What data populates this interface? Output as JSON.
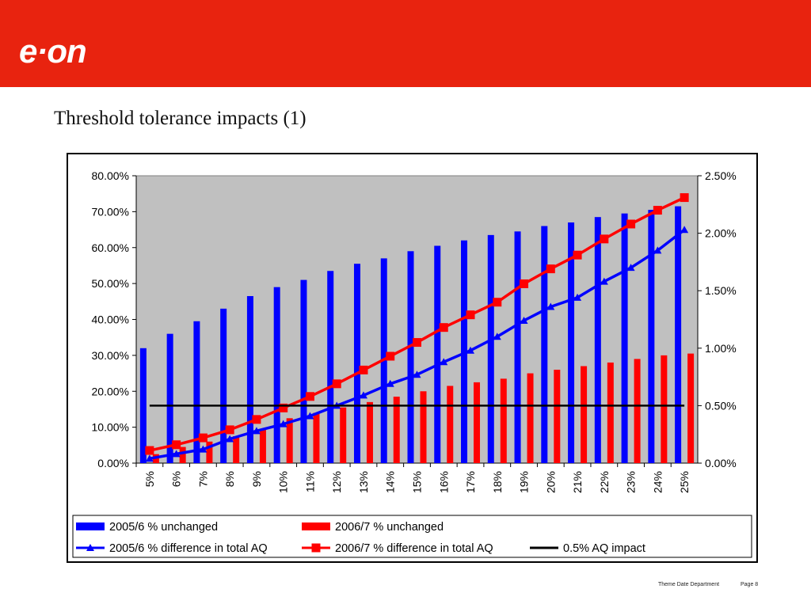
{
  "brand": {
    "logo_text": "e·on",
    "color": "#e8230f"
  },
  "slide": {
    "title": "Threshold tolerance impacts (1)"
  },
  "footer": {
    "meta": "Theme  Date  Department",
    "page": "Page 8"
  },
  "chart_data": {
    "type": "bar",
    "title": "",
    "categories": [
      "5%",
      "6%",
      "7%",
      "8%",
      "9%",
      "10%",
      "11%",
      "12%",
      "13%",
      "14%",
      "15%",
      "16%",
      "17%",
      "18%",
      "19%",
      "20%",
      "21%",
      "22%",
      "23%",
      "24%",
      "25%"
    ],
    "y_left": {
      "range": [
        0,
        80
      ],
      "ticks": [
        "0.00%",
        "10.00%",
        "20.00%",
        "30.00%",
        "40.00%",
        "50.00%",
        "60.00%",
        "70.00%",
        "80.00%"
      ]
    },
    "y_right": {
      "range": [
        0,
        2.5
      ],
      "ticks": [
        "0.00%",
        "0.50%",
        "1.00%",
        "1.50%",
        "2.00%",
        "2.50%"
      ]
    },
    "plot_background": "#c0c0c0",
    "series": [
      {
        "name": "2005/6 % unchanged",
        "type": "bar",
        "axis": "left",
        "color": "#0000ff",
        "values": [
          32,
          36,
          39.5,
          43,
          46.5,
          49,
          51,
          53.5,
          55.5,
          57,
          59,
          60.5,
          62,
          63.5,
          64.5,
          66,
          67,
          68.5,
          69.5,
          70.5,
          71.5
        ]
      },
      {
        "name": "2006/7 % unchanged",
        "type": "bar",
        "axis": "left",
        "color": "#ff0000",
        "values": [
          2.5,
          4.5,
          6,
          7.5,
          9.5,
          12.5,
          14,
          15.5,
          17,
          18.5,
          20,
          21.5,
          22.5,
          23.5,
          25,
          26,
          27,
          28,
          29,
          30,
          30.5
        ]
      },
      {
        "name": "2005/6 % difference in total AQ",
        "type": "line",
        "marker": "triangle",
        "axis": "right",
        "color": "#0000ff",
        "values": [
          0.04,
          0.08,
          0.12,
          0.21,
          0.28,
          0.34,
          0.41,
          0.5,
          0.59,
          0.69,
          0.77,
          0.88,
          0.98,
          1.1,
          1.24,
          1.36,
          1.44,
          1.58,
          1.7,
          1.85,
          2.03
        ]
      },
      {
        "name": "2006/7 % difference in total AQ",
        "type": "line",
        "marker": "square",
        "axis": "right",
        "color": "#ff0000",
        "values": [
          0.11,
          0.16,
          0.22,
          0.29,
          0.38,
          0.48,
          0.58,
          0.69,
          0.81,
          0.93,
          1.05,
          1.18,
          1.29,
          1.4,
          1.56,
          1.69,
          1.81,
          1.95,
          2.08,
          2.2,
          2.31
        ]
      },
      {
        "name": "0.5% AQ impact",
        "type": "line",
        "marker": "none",
        "axis": "right",
        "color": "#000000",
        "values": [
          0.5,
          0.5,
          0.5,
          0.5,
          0.5,
          0.5,
          0.5,
          0.5,
          0.5,
          0.5,
          0.5,
          0.5,
          0.5,
          0.5,
          0.5,
          0.5,
          0.5,
          0.5,
          0.5,
          0.5,
          0.5
        ]
      }
    ],
    "legend_position": "bottom"
  }
}
